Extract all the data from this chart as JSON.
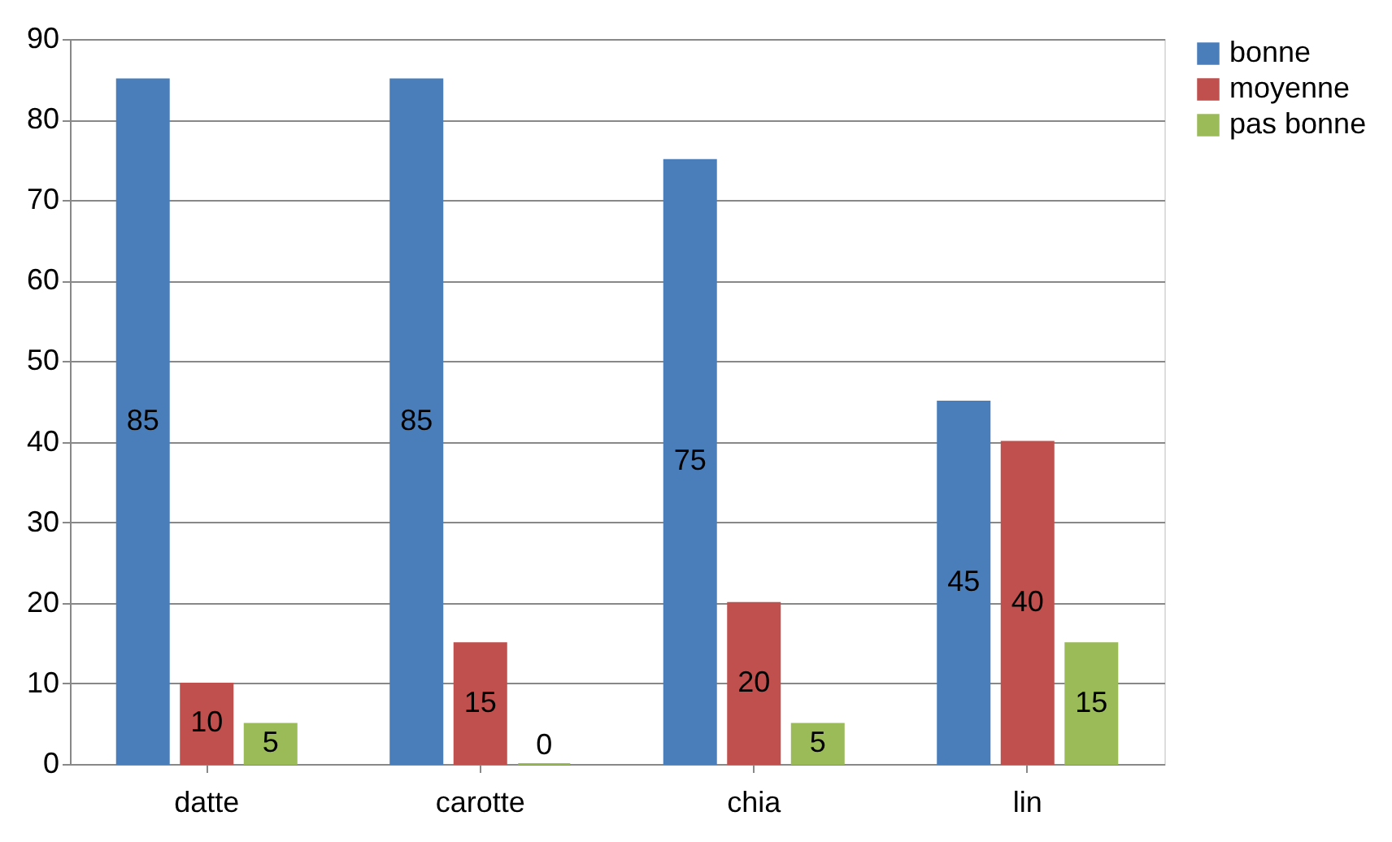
{
  "chart_data": {
    "type": "bar",
    "categories": [
      "datte",
      "carotte",
      "chia",
      "lin"
    ],
    "series": [
      {
        "name": "bonne",
        "color": "#4a7ebb",
        "values": [
          85,
          85,
          75,
          45
        ]
      },
      {
        "name": "moyenne",
        "color": "#c0504d",
        "values": [
          10,
          15,
          20,
          40
        ]
      },
      {
        "name": "pas bonne",
        "color": "#9bbb59",
        "values": [
          5,
          0,
          5,
          15
        ]
      }
    ],
    "ylim": [
      0,
      90
    ],
    "yticks": [
      0,
      10,
      20,
      30,
      40,
      50,
      60,
      70,
      80,
      90
    ],
    "grid": "y",
    "legend": "right",
    "data_labels": true
  }
}
